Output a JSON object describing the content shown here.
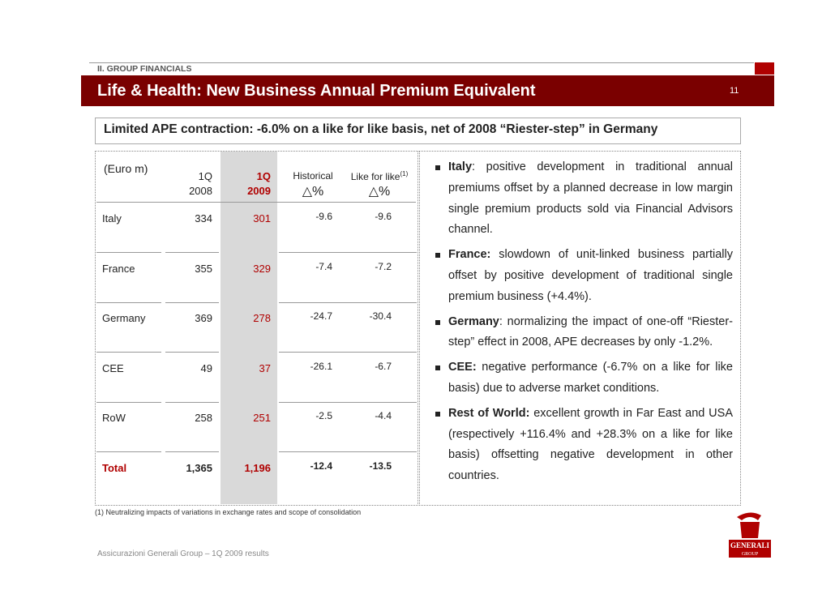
{
  "header": {
    "section": "II. GROUP FINANCIALS",
    "title": "Life & Health: New Business Annual Premium Equivalent",
    "page": "11"
  },
  "subtitle": "Limited APE contraction: -6.0% on a like for like basis, net of 2008 “Riester-step” in Germany",
  "table": {
    "unit": "(Euro m)",
    "columns": [
      {
        "line1": "1Q",
        "line2": "2008"
      },
      {
        "line1": "1Q",
        "line2": "2009"
      },
      {
        "line1": "Historical",
        "line2": "△%"
      },
      {
        "line1": "Like for like",
        "sup": "(1)",
        "line2": "△%"
      }
    ],
    "rows": [
      [
        "Italy",
        "334",
        "301",
        "-9.6",
        "-9.6"
      ],
      [
        "France",
        "355",
        "329",
        "-7.4",
        "-7.2"
      ],
      [
        "Germany",
        "369",
        "278",
        "-24.7",
        "-30.4"
      ],
      [
        "CEE",
        "49",
        "37",
        "-26.1",
        "-6.7"
      ],
      [
        "RoW",
        "258",
        "251",
        "-2.5",
        "-4.4"
      ],
      [
        "Total",
        "1,365",
        "1,196",
        "-12.4",
        "-13.5"
      ]
    ]
  },
  "footnote": "(1) Neutralizing impacts of variations in exchange rates and scope of consolidation",
  "bullets": [
    {
      "lead": "Italy",
      "text": ": positive development in traditional annual premiums offset by a planned decrease in low margin single premium products sold via Financial Advisors channel."
    },
    {
      "lead": "France:",
      "text": " slowdown of unit-linked business partially offset by positive development of traditional single premium business (+4.4%)."
    },
    {
      "lead": "Germany",
      "text": ": normalizing the impact of one-off “Riester-step” effect in 2008, APE decreases by only -1.2%."
    },
    {
      "lead": "CEE:",
      "text": " negative performance (-6.7% on a like for like basis) due to adverse market conditions."
    },
    {
      "lead": "Rest of World:",
      "text": " excellent growth in Far East and USA (respectively +116.4% and +28.3% on a like for like basis) offsetting negative development in other countries."
    }
  ],
  "footer": "Assicurazioni Generali Group – 1Q 2009 results",
  "logo": {
    "name": "GENERALI",
    "group": "GROUP"
  }
}
